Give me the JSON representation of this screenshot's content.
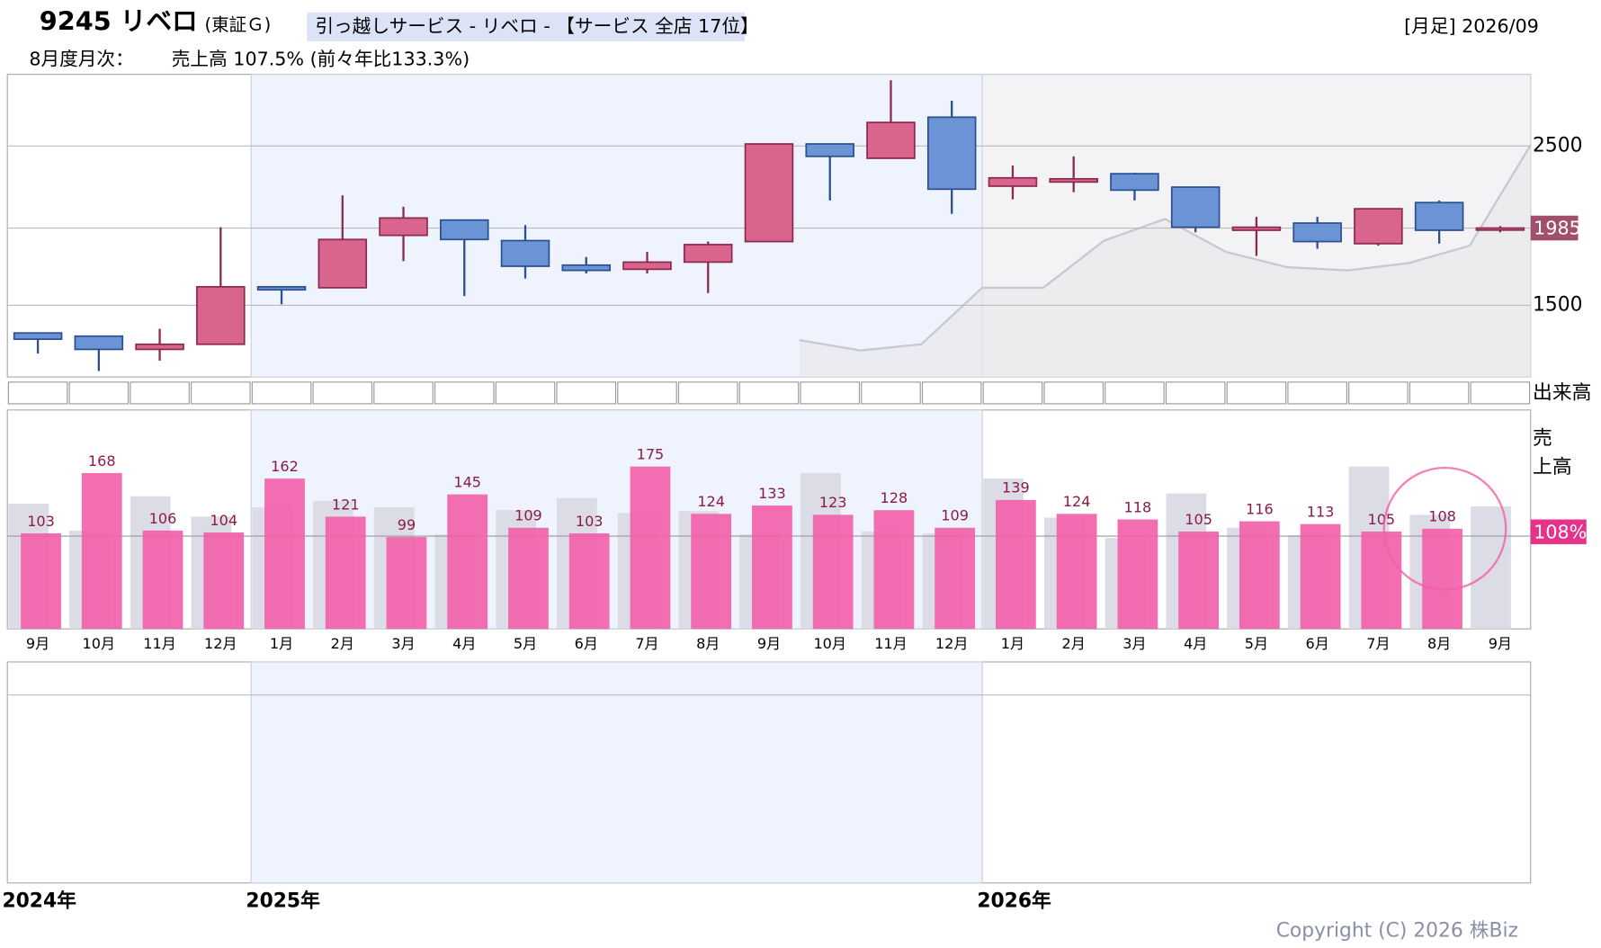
{
  "header": {
    "code_name": "9245 リベロ",
    "market": "(東証Ｇ)",
    "industry": "引っ越しサービス - リベロ - 【サービス 全店 17位】",
    "period": "[月足] 2026/09",
    "monthly_label": "8月度月次：",
    "monthly_text": "売上高 107.5% (前々年比133.3%)"
  },
  "chart_data": {
    "type": "candlestick",
    "categories": [
      "9月",
      "10月",
      "11月",
      "12月",
      "1月",
      "2月",
      "3月",
      "4月",
      "5月",
      "6月",
      "7月",
      "8月",
      "9月",
      "10月",
      "11月",
      "12月",
      "1月",
      "2月",
      "3月",
      "4月",
      "5月",
      "6月",
      "7月",
      "8月",
      "9月"
    ],
    "years": [
      "2024年",
      "2025年",
      "2026年"
    ],
    "open": [
      1326,
      1306,
      1223,
      1255,
      1616,
      1610,
      1939,
      2035,
      1906,
      1752,
      1726,
      1771,
      1900,
      2513,
      2423,
      2681,
      2248,
      2274,
      2326,
      2242,
      1971,
      2016,
      1887,
      2145,
      1977
    ],
    "high": [
      1326,
      1306,
      1352,
      1990,
      1616,
      2190,
      2119,
      2035,
      2003,
      1803,
      1835,
      1900,
      2513,
      2513,
      2913,
      2784,
      2377,
      2435,
      2332,
      2242,
      2055,
      2055,
      2106,
      2158,
      1997
    ],
    "low": [
      1197,
      1087,
      1152,
      1255,
      1506,
      1610,
      1777,
      1558,
      1668,
      1700,
      1700,
      1577,
      1900,
      2158,
      2423,
      2074,
      2165,
      2210,
      2158,
      1958,
      1810,
      1855,
      1874,
      1887,
      1958
    ],
    "close": [
      1287,
      1223,
      1255,
      1616,
      1597,
      1913,
      2048,
      1913,
      1745,
      1719,
      1771,
      1881,
      2513,
      2435,
      2648,
      2229,
      2300,
      2294,
      2223,
      1990,
      1990,
      1900,
      2106,
      1971,
      1985
    ],
    "up_color": "#d9648e",
    "down_color": "#6b94d6",
    "area_values": [
      null,
      null,
      null,
      null,
      null,
      null,
      null,
      null,
      null,
      null,
      null,
      null,
      1281,
      1216,
      1255,
      1610,
      1610,
      1906,
      2042,
      1835,
      1739,
      1719,
      1765,
      1874,
      2506
    ],
    "area_color": "#e8e8ec",
    "ylim": [
      1050,
      2950
    ],
    "yticks": [
      1500,
      2500
    ],
    "last_price": 1985,
    "volume_label": "出来高",
    "sales": {
      "label_lines": [
        "売",
        "上高"
      ],
      "values": [
        103,
        168,
        106,
        104,
        162,
        121,
        99,
        145,
        109,
        103,
        175,
        124,
        133,
        123,
        128,
        109,
        139,
        124,
        118,
        105,
        116,
        113,
        105,
        108,
        null
      ],
      "prior_values": [
        135,
        106,
        143,
        121,
        131,
        138,
        131,
        102,
        128,
        141,
        125,
        127,
        102,
        168,
        105,
        103,
        162,
        120,
        98,
        146,
        109,
        101,
        175,
        123,
        132
      ],
      "color": "#f25ea8",
      "prior_color": "#dcdce6",
      "ylim": [
        0,
        236
      ],
      "reference": 100,
      "latest_label": "108%"
    }
  },
  "footer": {
    "copyright": "Copyright (C) 2026 株Biz"
  }
}
